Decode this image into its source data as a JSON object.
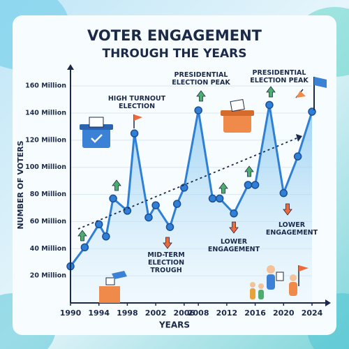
{
  "chart_data": {
    "type": "line",
    "title": "VOTER ENGAGEMENT",
    "subtitle": "THROUGH THE YEARS",
    "x_label": "YEARS",
    "y_label": "NUMBER OF VOTERS",
    "x": [
      1990,
      1992,
      1994,
      1995,
      1996,
      1998,
      1999,
      2001,
      2002,
      2004,
      2005,
      2006,
      2008,
      2010,
      2011,
      2013,
      2015,
      2016,
      2018,
      2020,
      2022,
      2024
    ],
    "series": [
      {
        "name": "Voters",
        "color": "#2f7fd6",
        "values": [
          27,
          41,
          58,
          49,
          77,
          68,
          125,
          63,
          72,
          56,
          73,
          85,
          142,
          77,
          77,
          66,
          87,
          87,
          146,
          81,
          108,
          141
        ]
      }
    ],
    "xlim": [
      1990,
      2024
    ],
    "xticks": [
      1990,
      1994,
      1998,
      2002,
      2006,
      2008,
      2012,
      2016,
      2020,
      2024
    ],
    "ylim": [
      0,
      175
    ],
    "yticks": [
      {
        "value": 20,
        "label": "20 Million"
      },
      {
        "value": 40,
        "label": "40 Million"
      },
      {
        "value": 60,
        "label": "60 Million"
      },
      {
        "value": 80,
        "label": "80 Million"
      },
      {
        "value": 100,
        "label": "100 Million"
      },
      {
        "value": 120,
        "label": "120 Million"
      },
      {
        "value": 140,
        "label": "140 Million"
      },
      {
        "value": 160,
        "label": "160 Million"
      }
    ],
    "grid": true,
    "annotations": [
      "HIGH TURNOUT ELECTION",
      "PRESIDENTIAL ELECTION PEAK",
      "PRESIDENTIAL ELECTION PEAK",
      "MID-TERM ELECTION TROUGH",
      "LOWER ENGAGEMENT",
      "LOWER ENGAGEMENT"
    ]
  }
}
